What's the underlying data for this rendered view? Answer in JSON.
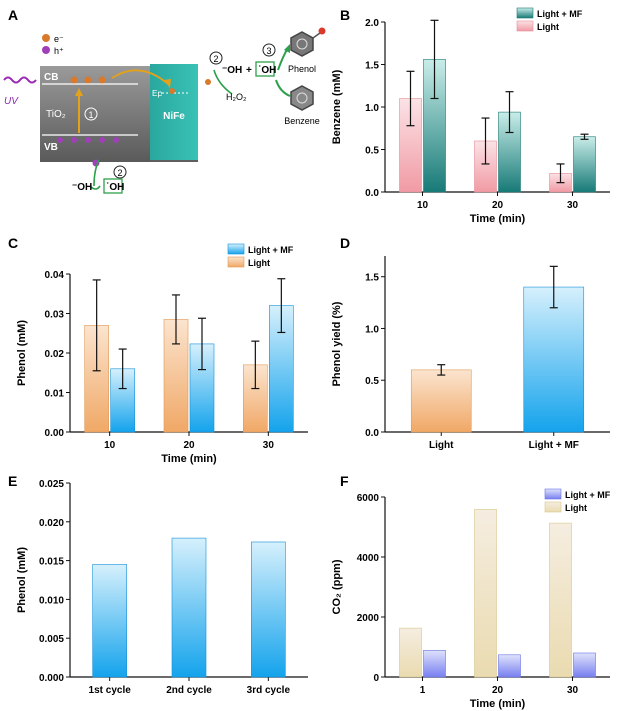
{
  "colors": {
    "light_pink": "#f4b7bd",
    "mf_teal": "#2f9a93",
    "light_orange": "#f3b987",
    "mf_blue": "#1ea9ee",
    "light_cream": "#eadfb8",
    "mf_violet": "#7f88f0",
    "err": "#111111"
  },
  "diagram": {
    "panel_letter": "A",
    "legend_electron": "e⁻",
    "legend_hole": "h⁺",
    "uv": "UV",
    "cb": "CB",
    "vb": "VB",
    "tio2": "TiO₂",
    "nife": "NiFe",
    "ef": "Eբ",
    "step1": "1",
    "step2_top": "2",
    "step2_bottom": "2",
    "step3": "3",
    "oh_minus_top": "⁻OH",
    "plus": "+",
    "oh_radical_top": "˙OH",
    "h2o2": "H₂O₂",
    "oh_minus_bottom": "⁻OH",
    "oh_radical_bottom": "˙OH",
    "phenol": "Phenol",
    "benzene": "Benzene"
  },
  "chart_data": [
    {
      "panel": "B",
      "type": "bar",
      "title": "",
      "xlabel": "Time (min)",
      "ylabel": "Benzene (mM)",
      "categories": [
        "10",
        "20",
        "30"
      ],
      "ylim": [
        0,
        2.0
      ],
      "yticks": [
        "0.0",
        "0.5",
        "1.0",
        "1.5",
        "2.0"
      ],
      "series": [
        {
          "name": "Light",
          "values": [
            1.1,
            0.6,
            0.22
          ],
          "errors": [
            0.32,
            0.27,
            0.11
          ]
        },
        {
          "name": "Light + MF",
          "values": [
            1.56,
            0.94,
            0.65
          ],
          "errors": [
            0.46,
            0.24,
            0.03
          ]
        }
      ],
      "legend": [
        "Light + MF",
        "Light"
      ]
    },
    {
      "panel": "C",
      "type": "bar",
      "title": "",
      "xlabel": "Time (min)",
      "ylabel": "Phenol (mM)",
      "categories": [
        "10",
        "20",
        "30"
      ],
      "ylim": [
        0,
        0.04
      ],
      "yticks": [
        "0.00",
        "0.01",
        "0.02",
        "0.03",
        "0.04"
      ],
      "series": [
        {
          "name": "Light",
          "values": [
            0.027,
            0.0285,
            0.017
          ],
          "errors": [
            0.0115,
            0.0062,
            0.006
          ]
        },
        {
          "name": "Light + MF",
          "values": [
            0.016,
            0.0223,
            0.032
          ],
          "errors": [
            0.005,
            0.0065,
            0.0068
          ]
        }
      ],
      "legend": [
        "Light + MF",
        "Light"
      ]
    },
    {
      "panel": "D",
      "type": "bar",
      "title": "",
      "xlabel": "",
      "ylabel": "Phenol yield (%)",
      "categories": [
        "Light",
        "Light + MF"
      ],
      "ylim": [
        0,
        1.7
      ],
      "yticks": [
        "0.0",
        "0.5",
        "1.0",
        "1.5"
      ],
      "series": [
        {
          "name": "Phenol yield",
          "values": [
            0.6,
            1.4
          ],
          "errors": [
            0.05,
            0.2
          ]
        }
      ]
    },
    {
      "panel": "E",
      "type": "bar",
      "title": "",
      "xlabel": "",
      "ylabel": "Phenol (mM)",
      "categories": [
        "1st cycle",
        "2nd cycle",
        "3rd cycle"
      ],
      "ylim": [
        0,
        0.025
      ],
      "yticks": [
        "0.000",
        "0.005",
        "0.010",
        "0.015",
        "0.020",
        "0.025"
      ],
      "series": [
        {
          "name": "Phenol",
          "values": [
            0.0145,
            0.0179,
            0.0174
          ]
        }
      ]
    },
    {
      "panel": "F",
      "type": "bar",
      "title": "",
      "xlabel": "Time (min)",
      "ylabel": "CO₂ (ppm)",
      "categories": [
        "1",
        "20",
        "30"
      ],
      "ylim": [
        0,
        6000
      ],
      "yticks": [
        "0",
        "2000",
        "4000",
        "6000"
      ],
      "series": [
        {
          "name": "Light",
          "values": [
            1630,
            5590,
            5130
          ]
        },
        {
          "name": "Light + MF",
          "values": [
            890,
            740,
            800
          ]
        }
      ],
      "legend": [
        "Light + MF",
        "Light"
      ]
    }
  ]
}
